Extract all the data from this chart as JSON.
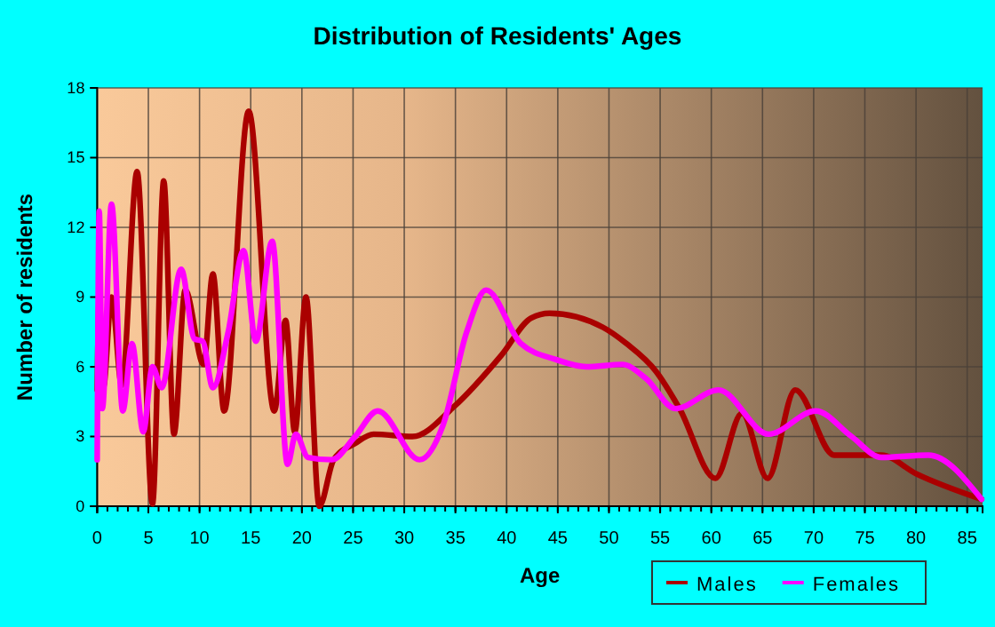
{
  "chart_data": {
    "type": "line",
    "title": "Distribution of Residents' Ages",
    "xlabel": "Age",
    "ylabel": "Number of residents",
    "xlim": [
      0,
      86.5
    ],
    "xticks": [
      0,
      5,
      10,
      15,
      20,
      25,
      30,
      35,
      40,
      45,
      50,
      55,
      60,
      65,
      70,
      75,
      80,
      85
    ],
    "ylim": [
      0,
      18
    ],
    "yticks": [
      0,
      3,
      6,
      9,
      12,
      15,
      18
    ],
    "grid": true,
    "legend": "bottom right",
    "line_style": "solid",
    "series": [
      {
        "name": "Males",
        "color": "#aa0000",
        "x": [
          0,
          0.2,
          0.6,
          1.4,
          2.4,
          3.9,
          5.4,
          6.5,
          7.5,
          8.6,
          10.4,
          11.3,
          12.4,
          14.8,
          17.3,
          18.4,
          19.3,
          20.4,
          21.7,
          23.1,
          25.2,
          27,
          30.8,
          34.9,
          39.5,
          42.4,
          44.2,
          49.4,
          51.7,
          54.6,
          56.9,
          60.4,
          63,
          65.5,
          68.2,
          72,
          76.6,
          80,
          86.4
        ],
        "values": [
          5,
          9,
          5.1,
          9,
          5.2,
          14.4,
          0.1,
          14,
          3.1,
          9.3,
          6.1,
          10,
          4.1,
          17,
          4.1,
          8,
          3.2,
          9,
          0,
          2,
          2.7,
          3.1,
          3,
          4.3,
          6.5,
          8.1,
          8.3,
          7.7,
          7,
          5.8,
          4.2,
          1.2,
          4,
          1.2,
          5,
          2.2,
          2.2,
          1.4,
          0.3
        ]
      },
      {
        "name": "Females",
        "color": "#ff00ff",
        "x": [
          0,
          0.2,
          0.5,
          1.4,
          2.5,
          3.4,
          4.5,
          5.4,
          6.3,
          8.2,
          9.5,
          10.3,
          11.3,
          12.8,
          14.3,
          15.5,
          17.1,
          18.6,
          19.4,
          20.6,
          22.9,
          25.2,
          27.4,
          31.5,
          33.8,
          36.1,
          38,
          41.4,
          44.9,
          47.8,
          51.3,
          53.6,
          56.5,
          60.7,
          65.6,
          70.2,
          73.7,
          76.6,
          81.2,
          86.4
        ],
        "values": [
          2,
          12.7,
          4.2,
          13,
          4.1,
          7,
          3.2,
          6,
          5.1,
          10.2,
          7.2,
          7.1,
          5.1,
          7.5,
          11,
          7.1,
          11.4,
          1.8,
          3.1,
          2.1,
          2,
          3,
          4.1,
          2,
          3.5,
          7.5,
          9.3,
          7,
          6.3,
          6,
          6.1,
          5.5,
          4.2,
          5,
          3.1,
          4.1,
          3,
          2.1,
          2.2,
          0.3
        ]
      }
    ]
  }
}
